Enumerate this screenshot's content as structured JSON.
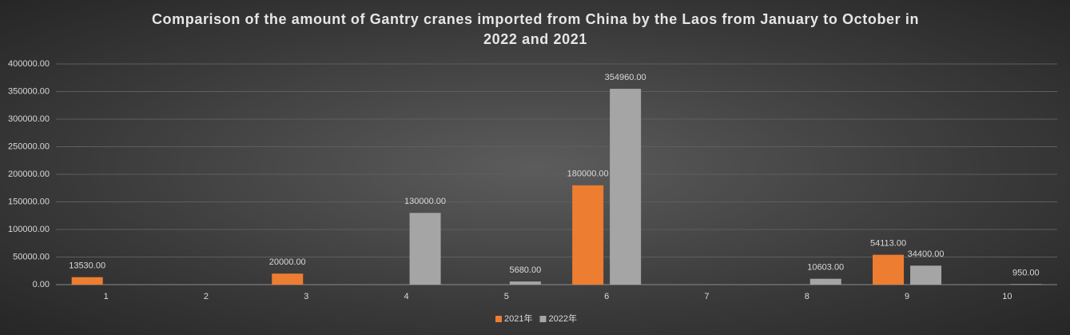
{
  "chart_data": {
    "type": "bar",
    "title": "Comparison of the amount of Gantry cranes imported from China by the Laos from January to October in 2022 and 2021",
    "categories": [
      "1",
      "2",
      "3",
      "4",
      "5",
      "6",
      "7",
      "8",
      "9",
      "10"
    ],
    "series": [
      {
        "name": "2021年",
        "color": "#ed7d31",
        "values": [
          13530,
          null,
          20000,
          null,
          null,
          180000,
          null,
          null,
          54113,
          null
        ],
        "value_labels": [
          "13530.00",
          null,
          "20000.00",
          null,
          null,
          "180000.00",
          null,
          null,
          "54113.00",
          null
        ]
      },
      {
        "name": "2022年",
        "color": "#a5a5a5",
        "values": [
          null,
          null,
          null,
          130000,
          5680,
          354960,
          null,
          10603,
          34400,
          950
        ],
        "value_labels": [
          null,
          null,
          null,
          "130000.00",
          "5680.00",
          "354960.00",
          null,
          "10603.00",
          "34400.00",
          "950.00"
        ]
      }
    ],
    "ylim": [
      0,
      400000
    ],
    "yticks": [
      {
        "value": 0,
        "label": "0.00"
      },
      {
        "value": 50000,
        "label": "50000.00"
      },
      {
        "value": 100000,
        "label": "100000.00"
      },
      {
        "value": 150000,
        "label": "150000.00"
      },
      {
        "value": 200000,
        "label": "200000.00"
      },
      {
        "value": 250000,
        "label": "250000.00"
      },
      {
        "value": 300000,
        "label": "300000.00"
      },
      {
        "value": 350000,
        "label": "350000.00"
      },
      {
        "value": 400000,
        "label": "400000.00"
      }
    ],
    "grid": true,
    "legend": "bottom"
  }
}
